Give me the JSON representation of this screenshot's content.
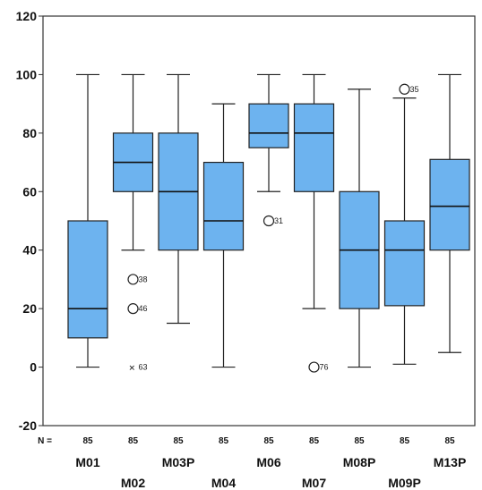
{
  "chart_data": {
    "type": "boxplot",
    "ylim": [
      -20,
      120
    ],
    "yticks": [
      -20,
      0,
      20,
      40,
      60,
      80,
      100,
      120
    ],
    "n_prefix": "N =",
    "box_color": "#6db3ef",
    "grid": false,
    "categories": [
      {
        "name": "M01",
        "n": "85",
        "min": 0,
        "q1": 10,
        "median": 20,
        "q3": 50,
        "max": 100,
        "outliers": []
      },
      {
        "name": "M02",
        "n": "85",
        "min": 40,
        "q1": 60,
        "median": 70,
        "q3": 80,
        "max": 100,
        "outliers": [
          {
            "value": 30,
            "label": "38",
            "symbol": "circle"
          },
          {
            "value": 20,
            "label": "46",
            "symbol": "circle"
          },
          {
            "value": 0,
            "label": "63",
            "symbol": "cross"
          }
        ]
      },
      {
        "name": "M03P",
        "n": "85",
        "min": 15,
        "q1": 40,
        "median": 60,
        "q3": 80,
        "max": 100,
        "outliers": []
      },
      {
        "name": "M04",
        "n": "85",
        "min": 0,
        "q1": 40,
        "median": 50,
        "q3": 70,
        "max": 90,
        "outliers": []
      },
      {
        "name": "M06",
        "n": "85",
        "min": 60,
        "q1": 75,
        "median": 80,
        "q3": 90,
        "max": 100,
        "outliers": [
          {
            "value": 50,
            "label": "31",
            "symbol": "circle"
          }
        ]
      },
      {
        "name": "M07",
        "n": "85",
        "min": 20,
        "q1": 60,
        "median": 80,
        "q3": 90,
        "max": 100,
        "outliers": [
          {
            "value": 0,
            "label": "76",
            "symbol": "circle"
          }
        ]
      },
      {
        "name": "M08P",
        "n": "85",
        "min": 0,
        "q1": 20,
        "median": 40,
        "q3": 60,
        "max": 95,
        "outliers": []
      },
      {
        "name": "M09P",
        "n": "85",
        "min": 1,
        "q1": 21,
        "median": 40,
        "q3": 50,
        "max": 92,
        "outliers": [
          {
            "value": 95,
            "label": "35",
            "symbol": "circle"
          }
        ]
      },
      {
        "name": "M13P",
        "n": "85",
        "min": 5,
        "q1": 40,
        "median": 55,
        "q3": 71,
        "max": 100,
        "outliers": []
      }
    ]
  }
}
